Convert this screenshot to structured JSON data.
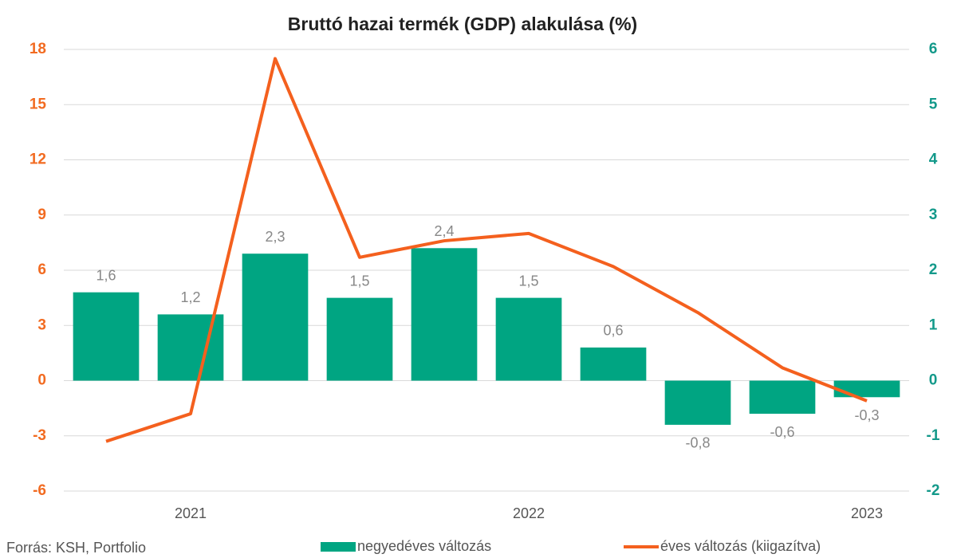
{
  "chart_data": {
    "type": "bar-line",
    "title": "Bruttó hazai termék (GDP) alakulása (%)",
    "source": "Forrás: KSH, Portfolio",
    "categories": [
      null,
      "2021",
      null,
      null,
      null,
      "2022",
      null,
      null,
      null,
      "2023"
    ],
    "series": [
      {
        "name": "negyedéves változás",
        "type": "bar",
        "axis": "y2",
        "color": "#00a582",
        "values": [
          1.6,
          1.2,
          2.3,
          1.5,
          2.4,
          1.5,
          0.6,
          -0.8,
          -0.6,
          -0.3
        ],
        "value_labels": [
          "1,6",
          "1,2",
          "2,3",
          "1,5",
          "2,4",
          "1,5",
          "0,6",
          "-0,8",
          "-0,6",
          "-0,3"
        ]
      },
      {
        "name": "éves változás (kiigazítva)",
        "type": "line",
        "axis": "y",
        "color": "#f4601e",
        "values": [
          -3.3,
          -1.8,
          17.5,
          6.7,
          7.6,
          8.0,
          6.2,
          3.7,
          0.7,
          -1.1
        ]
      }
    ],
    "ylim": [
      -6,
      18
    ],
    "yticks": [
      -6,
      -3,
      0,
      3,
      6,
      9,
      12,
      15,
      18
    ],
    "ytick_color": "#f26b21",
    "y2lim": [
      -2,
      6
    ],
    "y2ticks": [
      -2,
      -1,
      0,
      1,
      2,
      3,
      4,
      5,
      6
    ],
    "y2tick_color": "#13998a",
    "grid": true
  }
}
